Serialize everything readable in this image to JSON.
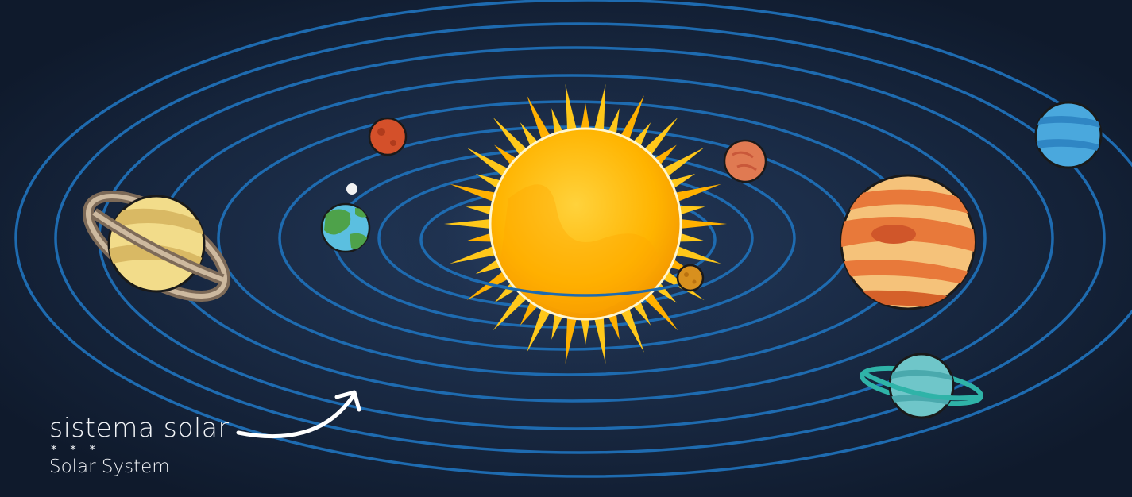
{
  "caption": {
    "primary": "sistema solar",
    "separator": "* * *",
    "secondary": "Solar System"
  },
  "palette": {
    "background": "#0f1a2c",
    "orbit": "#1e6bb0",
    "sun_core": "#ffb400",
    "sun_rays": "#ffc81a",
    "caption_text": "#f2f4f7"
  }
}
